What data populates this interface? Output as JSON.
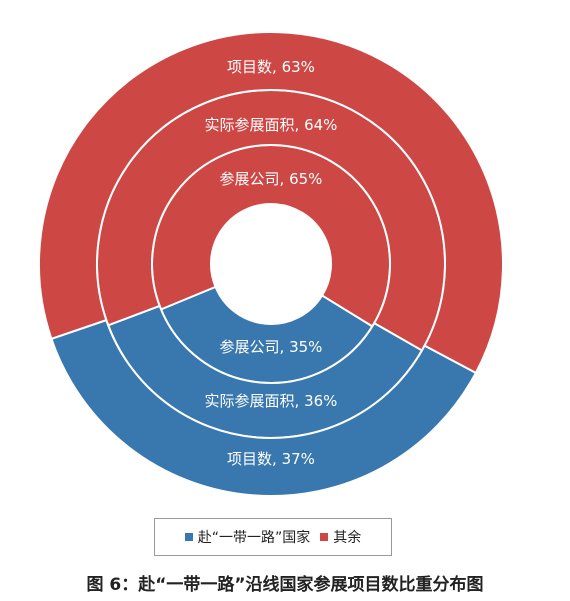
{
  "chart_data": {
    "type": "pie",
    "subtype": "nested-donut",
    "categories": [
      "赴“一带一路”国家",
      "其余"
    ],
    "colors": [
      "#3878ae",
      "#cd4845"
    ],
    "rings": [
      {
        "name": "参展公司",
        "values": [
          35,
          65
        ],
        "labels": [
          "参展公司, 35%",
          "参展公司, 65%"
        ]
      },
      {
        "name": "实际参展面积",
        "values": [
          36,
          64
        ],
        "labels": [
          "实际参展面积, 36%",
          "实际参展面积, 64%"
        ]
      },
      {
        "name": "项目数",
        "values": [
          37,
          63
        ],
        "labels": [
          "项目数, 37%",
          "项目数, 63%"
        ]
      }
    ],
    "legend": {
      "position": "bottom",
      "entries": [
        "赴“一带一路”国家",
        "其余"
      ]
    }
  },
  "caption": "图 6：赴“一带一路”沿线国家参展项目数比重分布图"
}
